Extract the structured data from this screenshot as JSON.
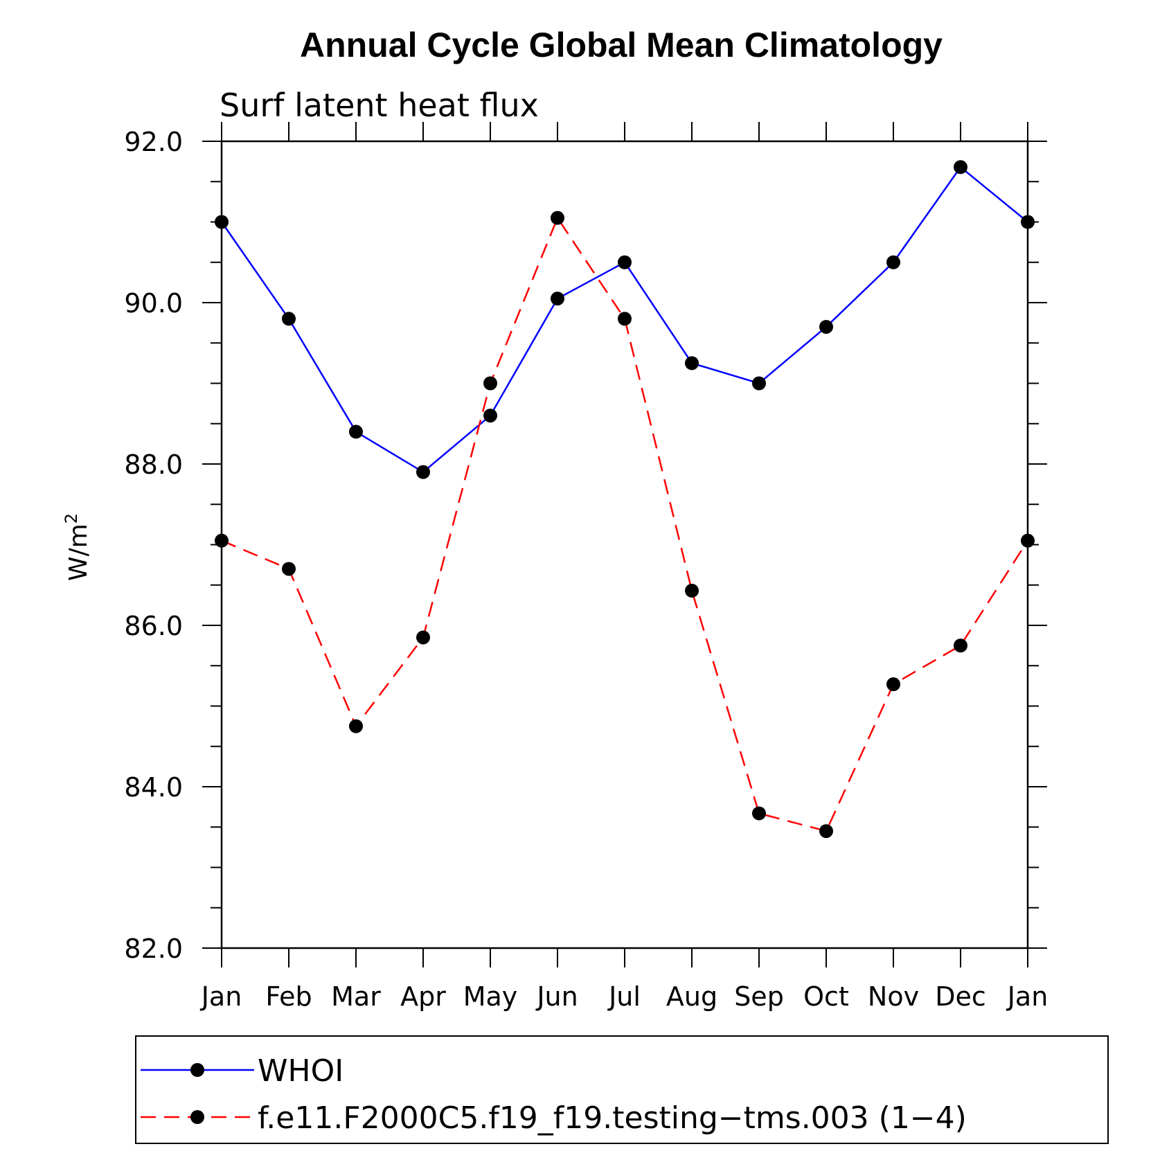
{
  "chart_data": {
    "type": "line",
    "title": "Annual Cycle Global Mean Climatology",
    "subtitle": "Surf latent heat flux",
    "ylabel": "W/m",
    "ylabel_superscript": "2",
    "xlabel": "",
    "ylim": [
      82.0,
      92.0
    ],
    "yticks": [
      "82.0",
      "84.0",
      "86.0",
      "88.0",
      "90.0",
      "92.0"
    ],
    "ytick_values": [
      82.0,
      84.0,
      86.0,
      88.0,
      90.0,
      92.0
    ],
    "categories": [
      "Jan",
      "Feb",
      "Mar",
      "Apr",
      "May",
      "Jun",
      "Jul",
      "Aug",
      "Sep",
      "Oct",
      "Nov",
      "Dec",
      "Jan"
    ],
    "grid": false,
    "legend_position": "bottom",
    "series": [
      {
        "name": "WHOI",
        "color": "#0000ff",
        "dash": "solid",
        "marker": "filled-circle",
        "values": [
          91.0,
          89.8,
          88.4,
          87.9,
          88.6,
          90.05,
          90.5,
          89.25,
          89.0,
          89.7,
          90.5,
          91.68,
          91.0
        ]
      },
      {
        "name": "f.e11.F2000C5.f19_f19.testing−tms.003 (1−4)",
        "color": "#ff0000",
        "dash": "dashed",
        "marker": "filled-circle",
        "values": [
          87.05,
          86.7,
          84.75,
          85.85,
          89.0,
          91.05,
          89.8,
          86.43,
          83.67,
          83.45,
          85.27,
          85.75,
          87.05
        ]
      }
    ]
  }
}
